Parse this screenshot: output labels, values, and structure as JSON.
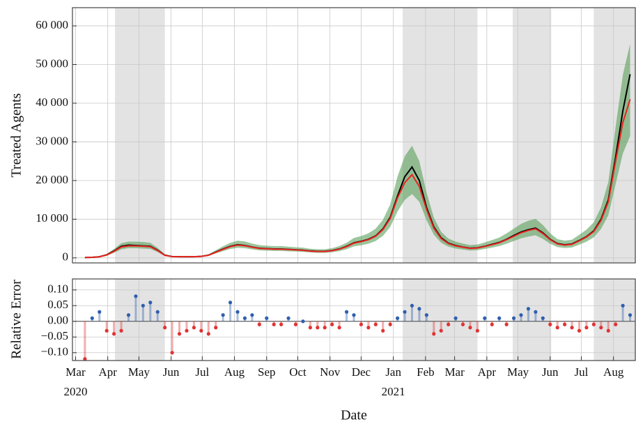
{
  "chart_data": [
    {
      "type": "line",
      "ylabel": "Treated Agents",
      "x": [
        9,
        16,
        23,
        30,
        37,
        44,
        51,
        58,
        65,
        72,
        79,
        86,
        93,
        100,
        107,
        114,
        121,
        128,
        135,
        142,
        149,
        156,
        163,
        170,
        177,
        184,
        191,
        198,
        205,
        212,
        219,
        226,
        233,
        240,
        247,
        254,
        261,
        268,
        275,
        282,
        289,
        296,
        303,
        310,
        317,
        324,
        331,
        338,
        345,
        352,
        359,
        366,
        373,
        380,
        387,
        394,
        401,
        408,
        415,
        422,
        429,
        436,
        443,
        450,
        457,
        464,
        471,
        478,
        485,
        492,
        499,
        506,
        513,
        520,
        527,
        534
      ],
      "series": [
        {
          "color": "#000000",
          "values": [
            100,
            150,
            300,
            800,
            1800,
            3000,
            3300,
            3200,
            3100,
            3000,
            2000,
            700,
            350,
            300,
            300,
            300,
            400,
            700,
            1500,
            2300,
            3000,
            3400,
            3200,
            2800,
            2500,
            2400,
            2300,
            2300,
            2200,
            2100,
            2000,
            1800,
            1700,
            1700,
            1900,
            2300,
            3000,
            3900,
            4300,
            4800,
            5700,
            7500,
            10500,
            16000,
            21000,
            23500,
            20000,
            13000,
            8000,
            5200,
            3800,
            3200,
            2800,
            2500,
            2600,
            3000,
            3500,
            4000,
            4800,
            5800,
            6700,
            7300,
            7700,
            6500,
            4800,
            3700,
            3400,
            3600,
            4500,
            5500,
            7000,
            10000,
            15000,
            26000,
            38000,
            47500
          ]
        },
        {
          "color": "#e8251f",
          "values": [
            100,
            150,
            280,
            750,
            1700,
            2800,
            3100,
            3100,
            3000,
            2900,
            1900,
            650,
            330,
            300,
            300,
            300,
            380,
            680,
            1450,
            2200,
            2900,
            3300,
            3150,
            2750,
            2450,
            2350,
            2250,
            2250,
            2150,
            2050,
            1950,
            1750,
            1650,
            1650,
            1850,
            2250,
            2900,
            3800,
            4200,
            4700,
            5600,
            7300,
            10200,
            15500,
            19500,
            21500,
            18500,
            12500,
            7700,
            5000,
            3700,
            3100,
            2750,
            2450,
            2550,
            2950,
            3400,
            3900,
            4700,
            5600,
            6500,
            7100,
            7500,
            6300,
            4700,
            3600,
            3300,
            3500,
            4400,
            5400,
            6800,
            9700,
            14500,
            25000,
            35000,
            41000
          ]
        }
      ],
      "band": {
        "color": "#5a9e5a",
        "lower": [
          80,
          110,
          200,
          550,
          1300,
          2200,
          2500,
          2500,
          2400,
          2300,
          1500,
          500,
          260,
          240,
          240,
          240,
          300,
          530,
          1150,
          1750,
          2300,
          2600,
          2500,
          2200,
          1950,
          1850,
          1800,
          1800,
          1700,
          1650,
          1550,
          1400,
          1300,
          1300,
          1450,
          1750,
          2250,
          2950,
          3250,
          3650,
          4350,
          5700,
          8000,
          12000,
          15000,
          16500,
          14500,
          9700,
          6000,
          3900,
          2900,
          2400,
          2150,
          1900,
          2000,
          2300,
          2650,
          3050,
          3650,
          4350,
          5050,
          5500,
          5850,
          4900,
          3650,
          2800,
          2550,
          2700,
          3400,
          4200,
          5300,
          7500,
          11000,
          19000,
          27000,
          31500
        ],
        "upper": [
          130,
          200,
          380,
          1000,
          2300,
          3800,
          4200,
          4200,
          4100,
          3900,
          2600,
          880,
          450,
          400,
          400,
          400,
          510,
          920,
          1950,
          3000,
          3900,
          4450,
          4250,
          3700,
          3300,
          3150,
          3050,
          3050,
          2900,
          2750,
          2650,
          2350,
          2250,
          2250,
          2500,
          3050,
          3900,
          5150,
          5650,
          6350,
          7550,
          9850,
          13800,
          21000,
          26300,
          29000,
          25000,
          16900,
          10400,
          6750,
          5000,
          4200,
          3700,
          3300,
          3450,
          4000,
          4600,
          5250,
          6350,
          7550,
          8800,
          9600,
          10100,
          8500,
          6350,
          4850,
          4450,
          4700,
          5950,
          7300,
          9200,
          13100,
          19600,
          33800,
          47300,
          55400
        ]
      },
      "shaded_regions": [
        [
          38,
          86
        ],
        [
          315,
          387
        ],
        [
          421,
          458
        ],
        [
          499,
          539
        ]
      ],
      "xlim": [
        -3,
        539
      ],
      "ylim": [
        -1300,
        64700
      ],
      "yticks": [
        0,
        {
          "value": 10000,
          "label": "10 000"
        },
        {
          "value": 20000,
          "label": "20 000"
        },
        {
          "value": 30000,
          "label": "30 000"
        },
        {
          "value": 40000,
          "label": "40 000"
        },
        {
          "value": 50000,
          "label": "50 000"
        },
        {
          "value": 60000,
          "label": "60 000"
        }
      ],
      "grid": true
    },
    {
      "type": "stem",
      "ylabel": "Relative Error",
      "xlabel": "Date",
      "x": [
        9,
        16,
        23,
        30,
        37,
        44,
        51,
        58,
        65,
        72,
        79,
        86,
        93,
        100,
        107,
        114,
        121,
        128,
        135,
        142,
        149,
        156,
        163,
        170,
        177,
        184,
        191,
        198,
        205,
        212,
        219,
        226,
        233,
        240,
        247,
        254,
        261,
        268,
        275,
        282,
        289,
        296,
        303,
        310,
        317,
        324,
        331,
        338,
        345,
        352,
        359,
        366,
        373,
        380,
        387,
        394,
        401,
        408,
        415,
        422,
        429,
        436,
        443,
        450,
        457,
        464,
        471,
        478,
        485,
        492,
        499,
        506,
        513,
        520,
        527,
        534
      ],
      "values": [
        -0.12,
        0.01,
        0.03,
        -0.03,
        -0.04,
        -0.03,
        0.02,
        0.08,
        0.05,
        0.06,
        0.03,
        -0.02,
        -0.1,
        -0.04,
        -0.03,
        -0.02,
        -0.03,
        -0.04,
        -0.02,
        0.02,
        0.06,
        0.03,
        0.01,
        0.02,
        -0.01,
        0.01,
        -0.01,
        -0.01,
        0.01,
        -0.01,
        0,
        -0.02,
        -0.02,
        -0.02,
        -0.01,
        -0.02,
        0.03,
        0.02,
        -0.01,
        -0.02,
        -0.01,
        -0.03,
        -0.01,
        0.01,
        0.03,
        0.05,
        0.04,
        0.02,
        -0.04,
        -0.03,
        -0.01,
        0.01,
        -0.01,
        -0.02,
        -0.03,
        0.01,
        -0.01,
        0.01,
        -0.01,
        0.01,
        0.02,
        0.04,
        0.03,
        0.01,
        -0.01,
        -0.02,
        -0.01,
        -0.02,
        -0.03,
        -0.02,
        -0.01,
        -0.02,
        -0.03,
        -0.01,
        0.05,
        0.02
      ],
      "positive_color": "#2f5fae",
      "negative_color": "#e03232",
      "xlim": [
        -3,
        539
      ],
      "ylim": [
        -0.125,
        0.135
      ],
      "yticks": [
        {
          "value": -0.1,
          "label": "−0.10"
        },
        {
          "value": -0.05,
          "label": "−0.05"
        },
        {
          "value": 0,
          "label": "0.00"
        },
        {
          "value": 0.05,
          "label": "0.05"
        },
        {
          "value": 0.1,
          "label": "0.10"
        }
      ],
      "xticks": [
        {
          "value": 0,
          "label": "Mar"
        },
        {
          "value": 31,
          "label": "Apr"
        },
        {
          "value": 61,
          "label": "May"
        },
        {
          "value": 92,
          "label": "Jun"
        },
        {
          "value": 122,
          "label": "Jul"
        },
        {
          "value": 153,
          "label": "Aug"
        },
        {
          "value": 184,
          "label": "Sep"
        },
        {
          "value": 214,
          "label": "Oct"
        },
        {
          "value": 245,
          "label": "Nov"
        },
        {
          "value": 275,
          "label": "Dec"
        },
        {
          "value": 306,
          "label": "Jan"
        },
        {
          "value": 337,
          "label": "Feb"
        },
        {
          "value": 365,
          "label": "Mar"
        },
        {
          "value": 396,
          "label": "Apr"
        },
        {
          "value": 426,
          "label": "May"
        },
        {
          "value": 457,
          "label": "Jun"
        },
        {
          "value": 487,
          "label": "Jul"
        },
        {
          "value": 518,
          "label": "Aug"
        }
      ],
      "year_labels": [
        {
          "value": 0,
          "label": "2020"
        },
        {
          "value": 306,
          "label": "2021"
        }
      ],
      "grid": true
    }
  ]
}
